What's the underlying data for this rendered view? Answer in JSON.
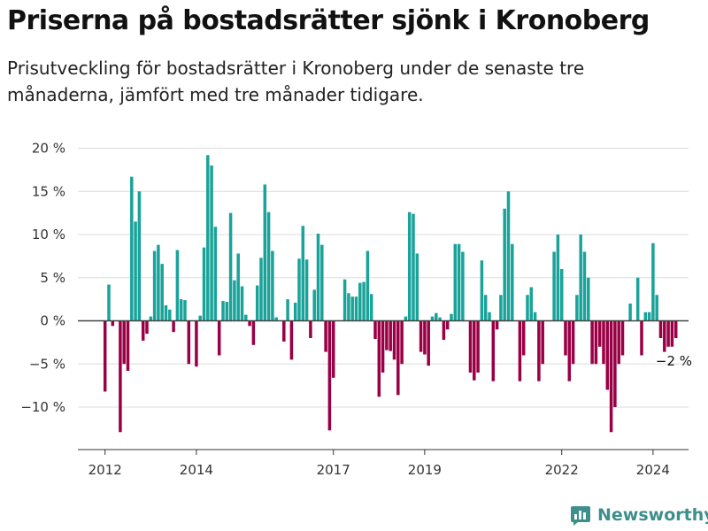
{
  "title": "Priserna på bostadsrätter sjönk i Kronoberg",
  "subtitle": "Prisutveckling för bostadsrätter i Kronoberg under de senaste tre månaderna, jämfört med tre månader tidigare.",
  "brand": {
    "name": "Newsworthy",
    "color": "#3d8f8c"
  },
  "colors": {
    "positive": "#1aa39a",
    "negative": "#9a0045",
    "grid": "#dcdcdc",
    "zero": "#444444"
  },
  "chart_data": {
    "type": "bar",
    "x_unit": "month",
    "x_start": "2012-01",
    "x_ticks": [
      "2012",
      "2014",
      "2017",
      "2019",
      "2022",
      "2024"
    ],
    "y_ticks": [
      "20 %",
      "15 %",
      "10 %",
      "5 %",
      "0 %",
      "−5 %",
      "−10 %"
    ],
    "ylim": [
      -14.5,
      20
    ],
    "annotation": {
      "label": "−2 %",
      "value": -2,
      "x": "2024-01"
    },
    "values": [
      -8.2,
      4.2,
      -0.6,
      0,
      -12.9,
      -5.0,
      -5.8,
      16.7,
      11.5,
      15.0,
      -2.3,
      -1.5,
      0.5,
      8.1,
      8.8,
      6.6,
      1.8,
      1.3,
      -1.3,
      8.2,
      2.5,
      2.4,
      -5.0,
      0,
      -5.3,
      0.6,
      8.5,
      19.2,
      18.0,
      10.9,
      -4.0,
      2.3,
      2.2,
      12.5,
      4.7,
      7.8,
      4.0,
      0.7,
      -0.6,
      -2.8,
      4.1,
      7.3,
      15.8,
      12.6,
      8.1,
      0.4,
      0,
      -2.4,
      2.5,
      -4.5,
      2.1,
      7.2,
      11.0,
      7.1,
      -2.0,
      3.6,
      10.1,
      8.8,
      -3.6,
      -12.7,
      -6.6,
      0,
      0,
      4.8,
      3.2,
      2.8,
      2.8,
      4.4,
      4.5,
      8.1,
      3.1,
      -2.1,
      -8.8,
      -6.0,
      -3.4,
      -3.5,
      -4.5,
      -8.6,
      -5.0,
      0.5,
      12.6,
      12.4,
      7.8,
      -3.6,
      -3.9,
      -5.2,
      0.5,
      0.9,
      0.4,
      -2.2,
      -1.0,
      0.8,
      8.9,
      8.9,
      8.0,
      0,
      -6.0,
      -6.9,
      -6.0,
      7.0,
      3.0,
      1.0,
      -7.0,
      -1.0,
      3.0,
      13.0,
      15.0,
      8.9,
      0,
      -7.0,
      -4.0,
      3.0,
      3.9,
      1.0,
      -7.0,
      -5.0,
      0,
      0,
      8.0,
      10.0,
      6.0,
      -4.0,
      -7.0,
      -5.0,
      3.0,
      10.0,
      8.0,
      5.0,
      -5.0,
      -5.0,
      -3.0,
      -5.0,
      -8.0,
      -12.9,
      -10.0,
      -5.0,
      -4.0,
      0,
      2.0,
      0,
      5.0,
      -4.0,
      1.0,
      1.0,
      9.0,
      3.0,
      -2.0,
      -3.6,
      -3.0,
      -3.0,
      -2.0
    ]
  }
}
